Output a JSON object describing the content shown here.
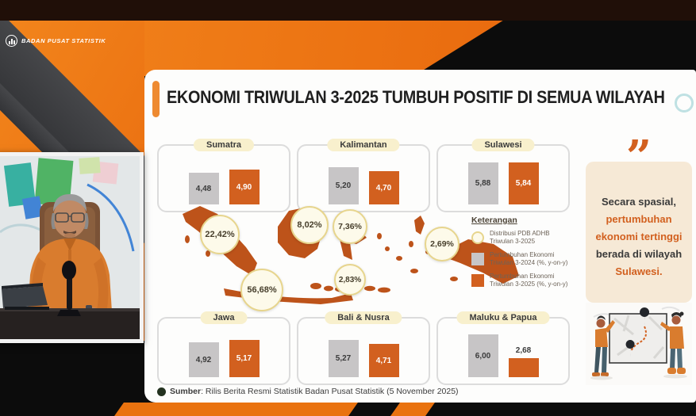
{
  "brand": {
    "name": "BADAN PUSAT STATISTIK",
    "logo_icon": "bps-logo"
  },
  "slide": {
    "title": "EKONOMI TRIWULAN 3-2025  TUMBUH POSITIF DI SEMUA WILAYAH",
    "source_label": "Sumber",
    "source_text": ": Rilis Berita Resmi Statistik Badan Pusat Statistik (5 November 2025)"
  },
  "quote": {
    "mark": "”",
    "line1": "Secara spasial,",
    "line2": "pertumbuhan",
    "line3": "ekonomi tertinggi",
    "line4": "berada di wilayah",
    "line5": "Sulawesi."
  },
  "legend": {
    "title": "Keterangan",
    "items": [
      {
        "swatch": "circle",
        "line1": "Distribusi PDB ADHB",
        "line2": "Triwulan 3-2025"
      },
      {
        "swatch": "gray",
        "line1": "Pertumbuhan Ekonomi",
        "line2": "Triwulan 3-2024 (%, y-on-y)"
      },
      {
        "swatch": "orange",
        "line1": "Pertumbuhan Ekonomi",
        "line2": "Triwulan 3-2025 (%, y-on-y)"
      }
    ]
  },
  "chart_data": {
    "type": "bar",
    "title": "EKONOMI TRIWULAN 3-2025 TUMBUH POSITIF DI SEMUA WILAYAH",
    "series": [
      {
        "name": "Pertumbuhan Ekonomi Triwulan 3-2024 (%, y-on-y)",
        "color": "#c7c5c6"
      },
      {
        "name": "Pertumbuhan Ekonomi Triwulan 3-2025 (%, y-on-y)",
        "color": "#d2601f"
      }
    ],
    "regions": [
      {
        "name": "Sumatra",
        "y2024": 4.48,
        "y2024_label": "4,48",
        "y2025": 4.9,
        "y2025_label": "4,90",
        "share": 22.42,
        "share_label": "22,42%"
      },
      {
        "name": "Kalimantan",
        "y2024": 5.2,
        "y2024_label": "5,20",
        "y2025": 4.7,
        "y2025_label": "4,70",
        "share": 8.02,
        "share_label": "8,02%"
      },
      {
        "name": "Sulawesi",
        "y2024": 5.88,
        "y2024_label": "5,88",
        "y2025": 5.84,
        "y2025_label": "5,84",
        "share": 7.36,
        "share_label": "7,36%"
      },
      {
        "name": "Jawa",
        "y2024": 4.92,
        "y2024_label": "4,92",
        "y2025": 5.17,
        "y2025_label": "5,17",
        "share": 56.68,
        "share_label": "56,68%"
      },
      {
        "name": "Bali & Nusra",
        "y2024": 5.27,
        "y2024_label": "5,27",
        "y2025": 4.71,
        "y2025_label": "4,71",
        "share": 2.83,
        "share_label": "2,83%"
      },
      {
        "name": "Maluku & Papua",
        "y2024": 6.0,
        "y2024_label": "6,00",
        "y2025": 2.68,
        "y2025_label": "2,68",
        "share": 2.69,
        "share_label": "2,69%"
      }
    ],
    "notes": "Distribusi PDB ADHB Triwulan 3-2025 shown as share % bubbles on map"
  },
  "colors": {
    "accent_orange": "#e9720f",
    "bar_orange": "#d2601f",
    "bar_gray": "#c7c5c6",
    "map_orange": "#bd531a",
    "stripe_dark": "#3a3b3d",
    "pill_cream": "#f8f0cd",
    "quote_bg": "#f6e9d6"
  }
}
